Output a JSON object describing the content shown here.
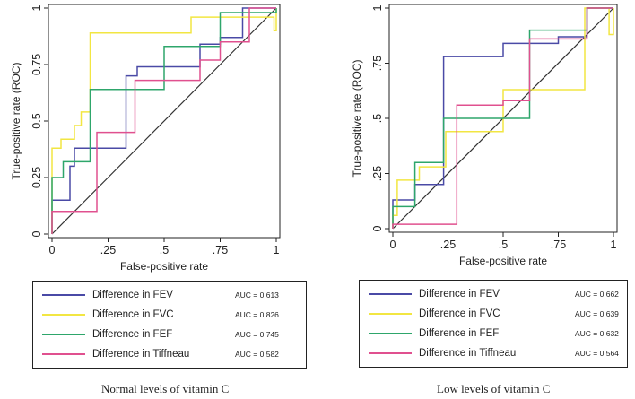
{
  "chart_data": [
    {
      "type": "line",
      "subtype": "roc-step",
      "caption": "Normal levels of vitamin C",
      "xlabel": "False-positive rate",
      "ylabel": "True-positive rate (ROC)",
      "xlim": [
        0,
        1
      ],
      "ylim": [
        0,
        1
      ],
      "xticks": [
        0,
        0.25,
        0.5,
        0.75,
        1
      ],
      "xtick_labels": [
        "0",
        ".25",
        ".5",
        ".75",
        "1"
      ],
      "yticks": [
        0,
        0.25,
        0.5,
        0.75,
        1
      ],
      "ytick_labels": [
        "0",
        "0.25",
        "0.5",
        "0.75",
        "1"
      ],
      "reference_line": true,
      "series": [
        {
          "name": "Difference in FEV",
          "auc_label": "AUC = 0.613",
          "color": "#4a4aa6",
          "points": [
            [
              0,
              0
            ],
            [
              0,
              0.15
            ],
            [
              0.08,
              0.15
            ],
            [
              0.08,
              0.3
            ],
            [
              0.1,
              0.3
            ],
            [
              0.1,
              0.38
            ],
            [
              0.33,
              0.38
            ],
            [
              0.33,
              0.7
            ],
            [
              0.38,
              0.7
            ],
            [
              0.38,
              0.74
            ],
            [
              0.66,
              0.74
            ],
            [
              0.66,
              0.84
            ],
            [
              0.75,
              0.84
            ],
            [
              0.75,
              0.87
            ],
            [
              0.85,
              0.87
            ],
            [
              0.85,
              1
            ],
            [
              1,
              1
            ]
          ]
        },
        {
          "name": "Difference in FVC",
          "auc_label": "AUC = 0.826",
          "color": "#f2e642",
          "points": [
            [
              0,
              0
            ],
            [
              0,
              0.38
            ],
            [
              0.04,
              0.38
            ],
            [
              0.04,
              0.42
            ],
            [
              0.1,
              0.42
            ],
            [
              0.1,
              0.48
            ],
            [
              0.13,
              0.48
            ],
            [
              0.13,
              0.54
            ],
            [
              0.17,
              0.54
            ],
            [
              0.17,
              0.89
            ],
            [
              0.62,
              0.89
            ],
            [
              0.62,
              0.96
            ],
            [
              0.99,
              0.96
            ],
            [
              0.99,
              0.9
            ],
            [
              1,
              0.9
            ],
            [
              1,
              1
            ]
          ]
        },
        {
          "name": "Difference in FEF",
          "auc_label": "AUC = 0.745",
          "color": "#2ea66b",
          "points": [
            [
              0,
              0
            ],
            [
              0,
              0.25
            ],
            [
              0.05,
              0.25
            ],
            [
              0.05,
              0.32
            ],
            [
              0.17,
              0.32
            ],
            [
              0.17,
              0.64
            ],
            [
              0.33,
              0.64
            ],
            [
              0.33,
              0.64
            ],
            [
              0.5,
              0.64
            ],
            [
              0.5,
              0.83
            ],
            [
              0.66,
              0.83
            ],
            [
              0.66,
              0.83
            ],
            [
              0.75,
              0.83
            ],
            [
              0.75,
              0.98
            ],
            [
              1,
              0.98
            ],
            [
              1,
              1
            ]
          ]
        },
        {
          "name": "Difference in Tiffneau",
          "auc_label": "AUC = 0.582",
          "color": "#e0508f",
          "points": [
            [
              0,
              0
            ],
            [
              0,
              0.1
            ],
            [
              0.2,
              0.1
            ],
            [
              0.2,
              0.45
            ],
            [
              0.37,
              0.45
            ],
            [
              0.37,
              0.68
            ],
            [
              0.66,
              0.68
            ],
            [
              0.66,
              0.77
            ],
            [
              0.75,
              0.77
            ],
            [
              0.75,
              0.85
            ],
            [
              0.88,
              0.85
            ],
            [
              0.88,
              1
            ],
            [
              1,
              1
            ]
          ]
        }
      ]
    },
    {
      "type": "line",
      "subtype": "roc-step",
      "caption": "Low levels of vitamin C",
      "xlabel": "False-positive rate",
      "ylabel": "True-positive rate (ROC)",
      "xlim": [
        0,
        1
      ],
      "ylim": [
        0,
        1
      ],
      "xticks": [
        0,
        0.25,
        0.5,
        0.75,
        1
      ],
      "xtick_labels": [
        "0",
        ".25",
        ".5",
        ".75",
        "1"
      ],
      "yticks": [
        0,
        0.25,
        0.5,
        0.75,
        1
      ],
      "ytick_labels": [
        "0",
        ".25",
        ".5",
        ".75",
        "1"
      ],
      "reference_line": true,
      "series": [
        {
          "name": "Difference in FEV",
          "auc_label": "AUC = 0.662",
          "color": "#4a4aa6",
          "points": [
            [
              0,
              0
            ],
            [
              0,
              0.13
            ],
            [
              0.1,
              0.13
            ],
            [
              0.1,
              0.2
            ],
            [
              0.23,
              0.2
            ],
            [
              0.23,
              0.78
            ],
            [
              0.5,
              0.78
            ],
            [
              0.5,
              0.84
            ],
            [
              0.75,
              0.84
            ],
            [
              0.75,
              0.87
            ],
            [
              0.88,
              0.87
            ],
            [
              0.88,
              1
            ],
            [
              1,
              1
            ]
          ]
        },
        {
          "name": "Difference in FVC",
          "auc_label": "AUC = 0.639",
          "color": "#f2e642",
          "points": [
            [
              0,
              0
            ],
            [
              0,
              0.06
            ],
            [
              0.02,
              0.06
            ],
            [
              0.02,
              0.22
            ],
            [
              0.12,
              0.22
            ],
            [
              0.12,
              0.28
            ],
            [
              0.24,
              0.28
            ],
            [
              0.24,
              0.44
            ],
            [
              0.5,
              0.44
            ],
            [
              0.5,
              0.63
            ],
            [
              0.87,
              0.63
            ],
            [
              0.87,
              1
            ],
            [
              0.98,
              1
            ],
            [
              0.98,
              0.88
            ],
            [
              1,
              0.88
            ],
            [
              1,
              1
            ]
          ]
        },
        {
          "name": "Difference in FEF",
          "auc_label": "AUC = 0.632",
          "color": "#2ea66b",
          "points": [
            [
              0,
              0
            ],
            [
              0,
              0.1
            ],
            [
              0.1,
              0.1
            ],
            [
              0.1,
              0.3
            ],
            [
              0.23,
              0.3
            ],
            [
              0.23,
              0.5
            ],
            [
              0.5,
              0.5
            ],
            [
              0.5,
              0.5
            ],
            [
              0.62,
              0.5
            ],
            [
              0.62,
              0.9
            ],
            [
              0.88,
              0.9
            ],
            [
              0.88,
              1
            ],
            [
              1,
              1
            ]
          ]
        },
        {
          "name": "Difference in Tiffneau",
          "auc_label": "AUC = 0.564",
          "color": "#e0508f",
          "points": [
            [
              0,
              0
            ],
            [
              0,
              0.02
            ],
            [
              0.29,
              0.02
            ],
            [
              0.29,
              0.56
            ],
            [
              0.5,
              0.56
            ],
            [
              0.5,
              0.58
            ],
            [
              0.62,
              0.58
            ],
            [
              0.62,
              0.73
            ],
            [
              0.62,
              0.73
            ],
            [
              0.62,
              0.86
            ],
            [
              0.88,
              0.86
            ],
            [
              0.88,
              1
            ],
            [
              1,
              1
            ]
          ]
        }
      ]
    }
  ]
}
